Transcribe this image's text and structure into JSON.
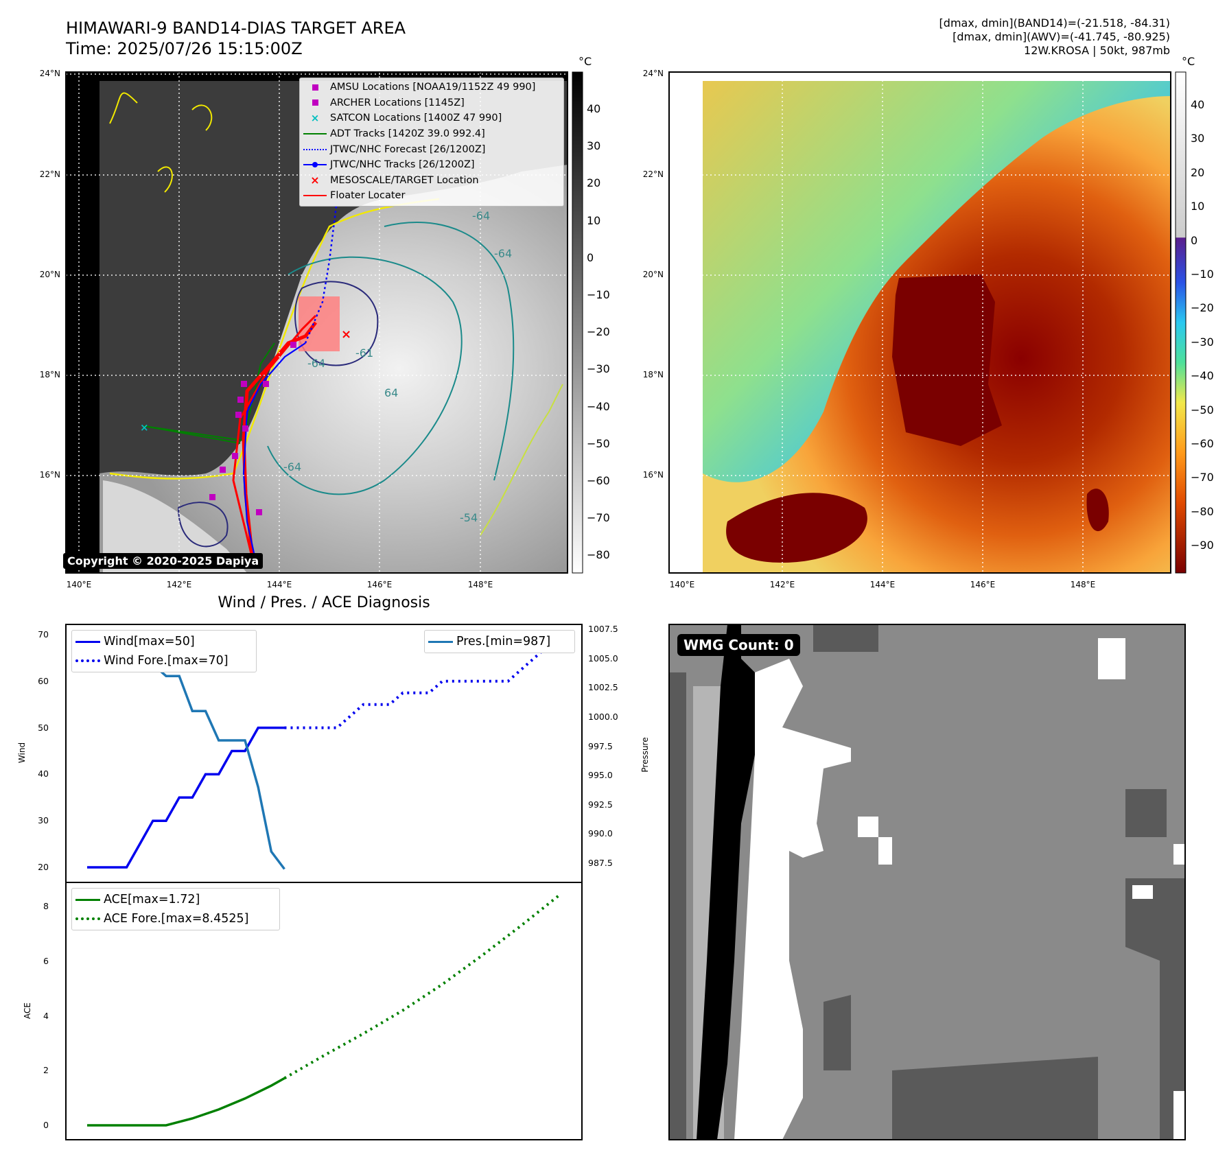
{
  "header": {
    "title_line1": "HIMAWARI-9 BAND14-DIAS TARGET AREA",
    "title_line2": "Time: 2025/07/26 15:15:00Z",
    "info_line1": "[dmax, dmin](BAND14)=(-21.518, -84.31)",
    "info_line2": "[dmax, dmin](AWV)=(-41.745, -80.925)",
    "info_line3": "12W.KROSA | 50kt, 987mb"
  },
  "maps": {
    "lat_ticks": [
      "24°N",
      "22°N",
      "20°N",
      "18°N",
      "16°N"
    ],
    "lon_ticks": [
      "140°E",
      "142°E",
      "144°E",
      "146°E",
      "148°E"
    ],
    "left_colorbar": {
      "unit": "°C",
      "ticks": [
        "40",
        "30",
        "20",
        "10",
        "0",
        "−10",
        "−20",
        "−30",
        "−40",
        "−50",
        "−60",
        "−70",
        "−80"
      ],
      "colors": [
        "#000000",
        "#ffffff"
      ]
    },
    "right_colorbar": {
      "unit": "°C",
      "ticks": [
        "40",
        "30",
        "20",
        "10",
        "0",
        "−10",
        "−20",
        "−30",
        "−40",
        "−50",
        "−60",
        "−70",
        "−80",
        "−90"
      ]
    },
    "copyright": "Copyright © 2020-2025 Dapiya",
    "contour_labels": [
      "-64",
      "-64",
      "-64",
      "-64",
      "-54",
      "-61",
      "64"
    ],
    "legend": [
      {
        "label": "AMSU Locations [NOAA19/1152Z 49 990]",
        "icon": "magenta-square",
        "color": "#c000c0"
      },
      {
        "label": "ARCHER Locations [1145Z]",
        "icon": "magenta-square",
        "color": "#c000c0"
      },
      {
        "label": "SATCON Locations [1400Z 47 990]",
        "icon": "cyan-x",
        "color": "#00bfbf"
      },
      {
        "label": "ADT Tracks [1420Z 39.0 992.4]",
        "icon": "green-line",
        "color": "#008000"
      },
      {
        "label": "JTWC/NHC Forecast [26/1200Z]",
        "icon": "blue-dotted-line",
        "color": "#0000ff"
      },
      {
        "label": "JTWC/NHC Tracks [26/1200Z]",
        "icon": "blue-line-dot",
        "color": "#0000ff"
      },
      {
        "label": "MESOSCALE/TARGET Location",
        "icon": "red-x",
        "color": "#ff0000"
      },
      {
        "label": "Floater Locater",
        "icon": "red-line",
        "color": "#ff0000"
      }
    ]
  },
  "diagnosis": {
    "title": "Wind / Pres. / ACE Diagnosis",
    "wind_ylabel": "Wind",
    "pres_ylabel": "Pressure",
    "ace_ylabel": "ACE",
    "wind_yticks": [
      "70",
      "60",
      "50",
      "40",
      "30",
      "20"
    ],
    "pres_yticks": [
      "1007.5",
      "1005.0",
      "1002.5",
      "1000.0",
      "997.5",
      "995.0",
      "992.5",
      "990.0",
      "987.5"
    ],
    "ace_yticks": [
      "8",
      "6",
      "4",
      "2",
      "0"
    ],
    "legend_wind": "Wind[max=50]",
    "legend_wind_fore": "Wind Fore.[max=70]",
    "legend_pres": "Pres.[min=987]",
    "legend_ace": "ACE[max=1.72]",
    "legend_ace_fore": "ACE Fore.[max=8.4525]",
    "colors": {
      "wind": "#0000ee",
      "pres": "#1f77b4",
      "ace": "#008000"
    }
  },
  "chart_data": [
    {
      "type": "line",
      "title": "Wind / Pres. / ACE Diagnosis",
      "ylabel": "Wind",
      "ylim": [
        18,
        72.5
      ],
      "series": [
        {
          "name": "Wind[max=50]",
          "style": "solid",
          "x": [
            0,
            1,
            2,
            3,
            4,
            5,
            6,
            7,
            8,
            9,
            10,
            11,
            12,
            13,
            14,
            15
          ],
          "values": [
            20,
            20,
            20,
            20,
            25,
            30,
            30,
            35,
            35,
            40,
            40,
            45,
            45,
            50,
            50,
            50
          ]
        },
        {
          "name": "Wind Fore.[max=70]",
          "style": "dotted",
          "x": [
            15,
            16,
            17,
            18,
            19,
            20,
            21,
            22,
            23,
            24,
            25,
            26,
            27,
            28,
            29,
            30,
            31,
            32,
            33,
            34,
            35,
            36
          ],
          "values": [
            50,
            50,
            50,
            50,
            50,
            52.5,
            55,
            55,
            55,
            57.5,
            57.5,
            57.5,
            60,
            60,
            60,
            60,
            60,
            60,
            62.5,
            65,
            67.5,
            67.5
          ]
        }
      ]
    },
    {
      "type": "line",
      "ylabel": "Pressure",
      "ylim": [
        986.5,
        1008
      ],
      "series": [
        {
          "name": "Pres.[min=987]",
          "x": [
            0,
            1,
            2,
            3,
            4,
            5,
            6,
            7,
            8,
            9,
            10,
            11,
            12,
            13,
            14,
            15
          ],
          "values": [
            1007,
            1007,
            1007,
            1007,
            1004.5,
            1004.5,
            1003.5,
            1003.5,
            1000.5,
            1000.5,
            998,
            998,
            998,
            994,
            988.5,
            987
          ]
        }
      ]
    },
    {
      "type": "line",
      "ylabel": "ACE",
      "ylim": [
        -0.4,
        8.9
      ],
      "series": [
        {
          "name": "ACE[max=1.72]",
          "style": "solid",
          "x": [
            0,
            2,
            4,
            6,
            8,
            10,
            12,
            14,
            15
          ],
          "values": [
            0,
            0,
            0,
            0,
            0.25,
            0.58,
            0.98,
            1.45,
            1.72
          ]
        },
        {
          "name": "ACE Fore.[max=8.4525]",
          "style": "dotted",
          "x": [
            15,
            18,
            21,
            24,
            27,
            30,
            33,
            36
          ],
          "values": [
            1.72,
            2.55,
            3.35,
            4.2,
            5.15,
            6.2,
            7.3,
            8.4525
          ]
        }
      ]
    }
  ]
}
